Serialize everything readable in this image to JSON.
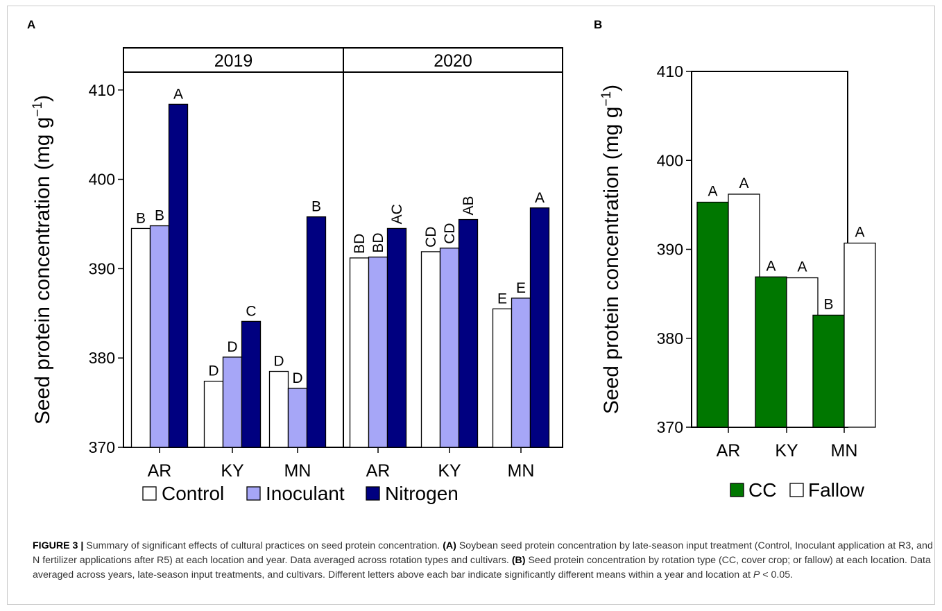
{
  "caption": {
    "label": "FIGURE 3 |",
    "p1": " Summary of significant effects of cultural practices on seed protein concentration. ",
    "a_tag": "(A)",
    "p2": " Soybean seed protein concentration by late-season input treatment (Control, Inoculant application at R3, and N fertilizer applications after R5) at each location and year. Data averaged across rotation types and cultivars. ",
    "b_tag": "(B)",
    "p3": " Seed protein concentration by rotation type (CC, cover crop; or fallow) at each location. Data averaged across years, late-season input treatments, and cultivars. Different letters above each bar indicate significantly different means within a year and location at ",
    "p_sym": "P",
    "p4": " < 0.05."
  },
  "chart_data": [
    {
      "panel": "A",
      "type": "bar",
      "ylabel": "Seed protein concentration (mg g",
      "ylabel_sup": "−1",
      "ylabel_end": ")",
      "ylim": [
        370,
        412
      ],
      "yticks": [
        370,
        380,
        390,
        400,
        410
      ],
      "facets": [
        "2019",
        "2020"
      ],
      "categories": [
        "AR",
        "KY",
        "MN"
      ],
      "series": [
        {
          "name": "Control",
          "color": "#ffffff",
          "values": [
            [
              394.5,
              377.4,
              378.5
            ],
            [
              391.2,
              391.9,
              385.5
            ]
          ],
          "letters": [
            [
              "B",
              "D",
              "D"
            ],
            [
              "BD",
              "CD",
              "E"
            ]
          ]
        },
        {
          "name": "Inoculant",
          "color": "#a6a6f7",
          "values": [
            [
              394.8,
              380.1,
              376.6
            ],
            [
              391.3,
              392.3,
              386.7
            ]
          ],
          "letters": [
            [
              "B",
              "D",
              "D"
            ],
            [
              "BD",
              "CD",
              "E"
            ]
          ]
        },
        {
          "name": "Nitrogen",
          "color": "#000080",
          "values": [
            [
              408.4,
              384.1,
              395.8
            ],
            [
              394.5,
              395.5,
              396.8
            ]
          ],
          "letters": [
            [
              "A",
              "C",
              "B"
            ],
            [
              "AC",
              "AB",
              "A"
            ]
          ]
        }
      ],
      "legend_position": "bottom"
    },
    {
      "panel": "B",
      "type": "bar",
      "ylabel": "Seed protein concentration (mg g",
      "ylabel_sup": "−1",
      "ylabel_end": ")",
      "ylim": [
        370,
        410
      ],
      "yticks": [
        370,
        380,
        390,
        400,
        410
      ],
      "categories": [
        "AR",
        "KY",
        "MN"
      ],
      "series": [
        {
          "name": "CC",
          "color": "#007700",
          "values": [
            395.3,
            386.9,
            382.6
          ],
          "letters": [
            "A",
            "A",
            "B"
          ]
        },
        {
          "name": "Fallow",
          "color": "#ffffff",
          "values": [
            396.2,
            386.8,
            390.7
          ],
          "letters": [
            "A",
            "A",
            "A"
          ]
        }
      ],
      "legend_position": "bottom"
    }
  ]
}
